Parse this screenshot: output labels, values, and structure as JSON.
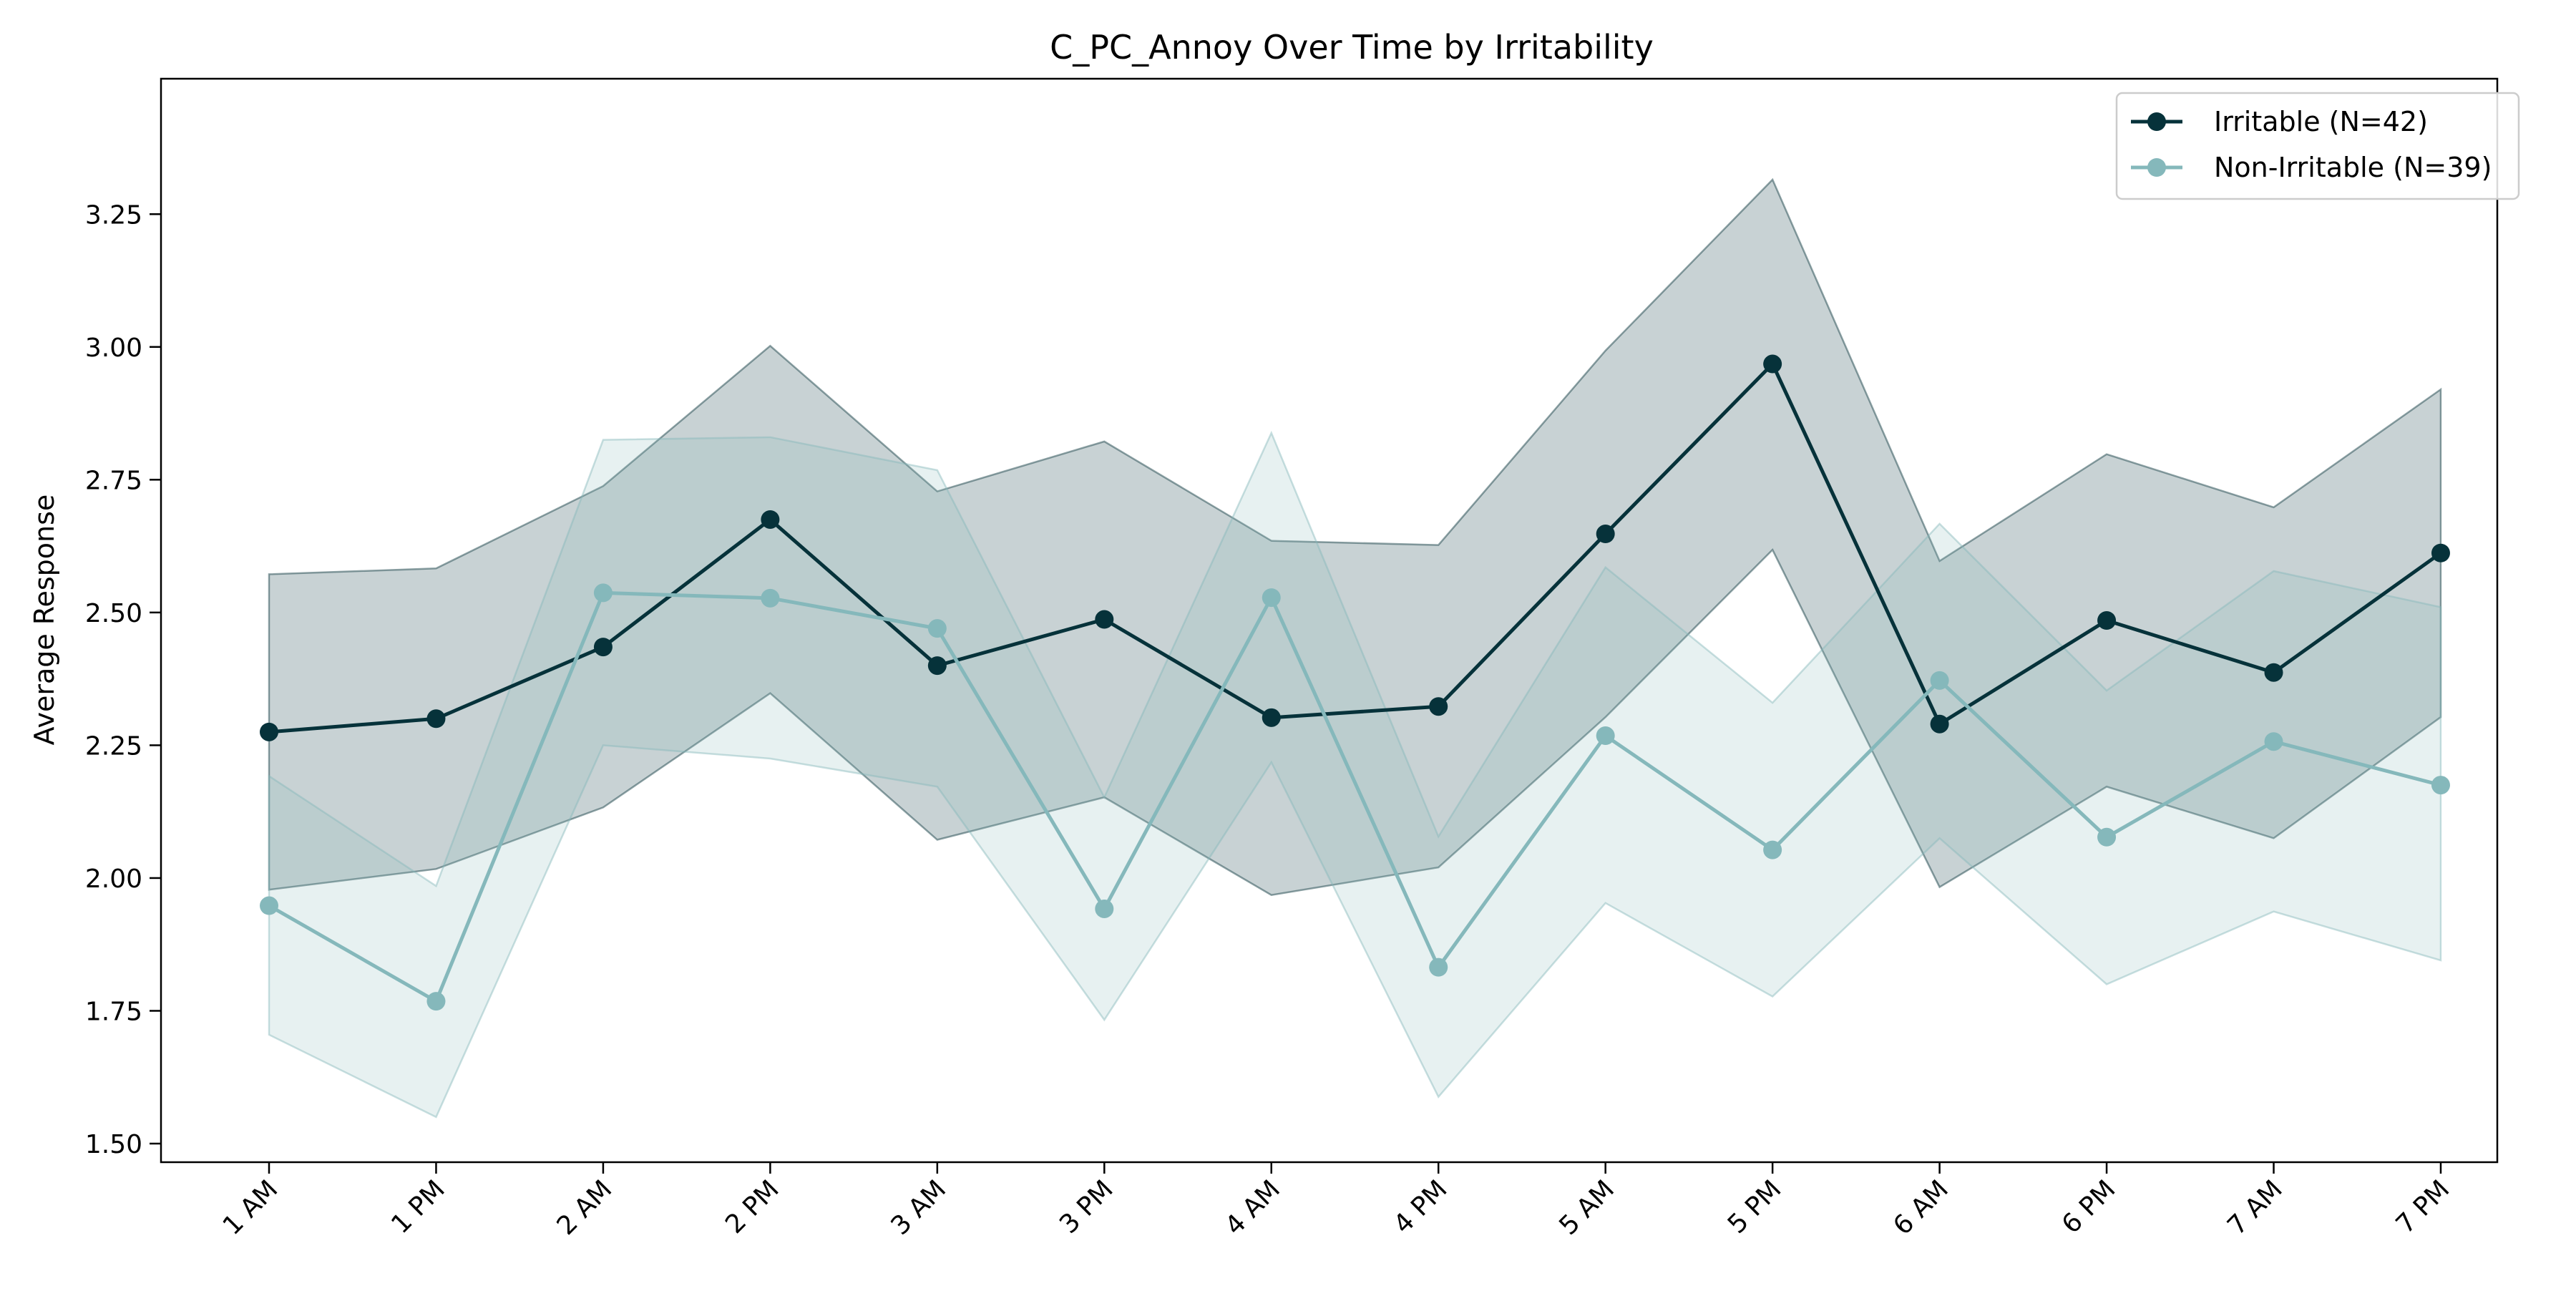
{
  "chart_data": {
    "type": "line",
    "title": "C_PC_Annoy Over Time by Irritability",
    "xlabel": "",
    "ylabel": "Average Response",
    "categories": [
      "1 AM",
      "1 PM",
      "2 AM",
      "2 PM",
      "3 AM",
      "3 PM",
      "4 AM",
      "4 PM",
      "5 AM",
      "5 PM",
      "6 AM",
      "6 PM",
      "7 AM",
      "7 PM"
    ],
    "yticks": [
      "1.50",
      "1.75",
      "2.00",
      "2.25",
      "2.50",
      "2.75",
      "3.00",
      "3.25"
    ],
    "ylim": [
      1.465,
      3.505
    ],
    "grid": false,
    "legend_position": "top-right",
    "series": [
      {
        "name": "Irritable (N=42)",
        "color": "#06323a",
        "band_opacity": 0.22,
        "values": [
          2.275,
          2.3,
          2.435,
          2.675,
          2.4,
          2.487,
          2.302,
          2.323,
          2.648,
          2.968,
          2.29,
          2.485,
          2.387,
          2.612
        ],
        "upper": [
          2.572,
          2.583,
          2.738,
          3.002,
          2.728,
          2.822,
          2.635,
          2.627,
          2.993,
          3.315,
          2.597,
          2.798,
          2.698,
          2.92
        ],
        "lower": [
          1.978,
          2.017,
          2.133,
          2.348,
          2.072,
          2.152,
          1.968,
          2.02,
          2.303,
          2.618,
          1.983,
          2.172,
          2.075,
          2.303
        ]
      },
      {
        "name": "Non-Irritable (N=39)",
        "color": "#85b8bb",
        "band_opacity": 0.2,
        "values": [
          1.948,
          1.768,
          2.537,
          2.527,
          2.47,
          1.942,
          2.528,
          1.832,
          2.268,
          2.053,
          2.372,
          2.077,
          2.257,
          2.175
        ],
        "upper": [
          2.192,
          1.985,
          2.825,
          2.83,
          2.768,
          2.152,
          2.838,
          2.078,
          2.585,
          2.33,
          2.667,
          2.353,
          2.578,
          2.51
        ],
        "lower": [
          1.705,
          1.55,
          2.25,
          2.225,
          2.172,
          1.733,
          2.218,
          1.588,
          1.953,
          1.777,
          2.075,
          1.8,
          1.937,
          1.845
        ]
      }
    ]
  }
}
